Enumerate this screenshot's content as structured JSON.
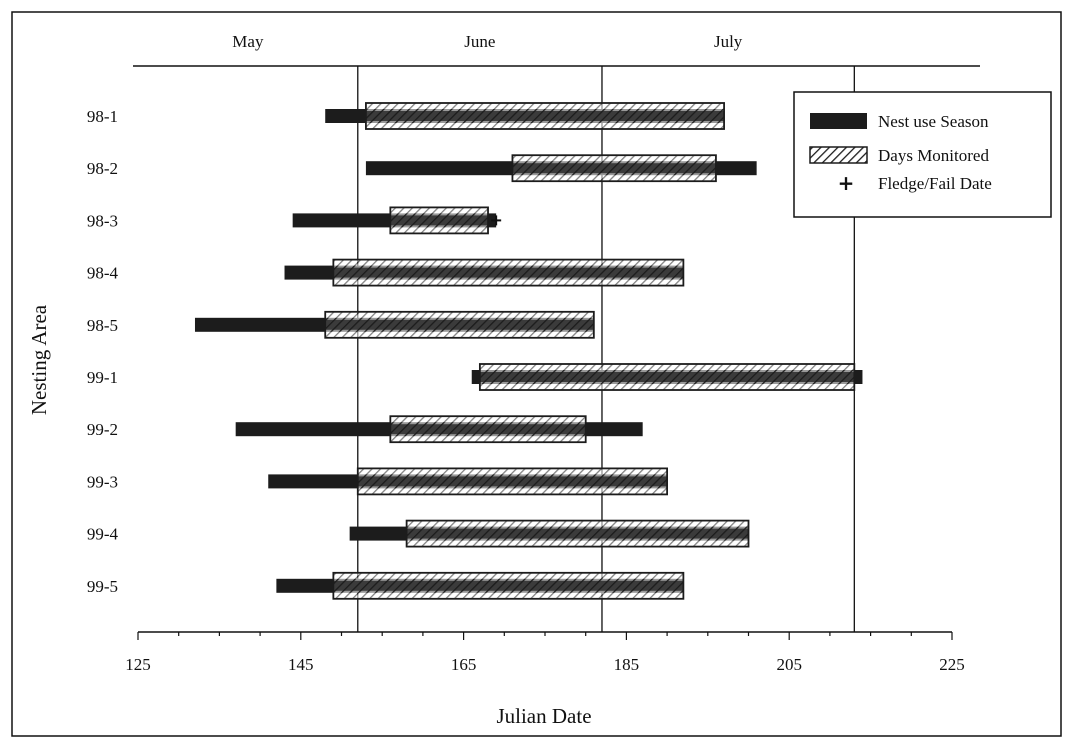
{
  "chart_data": {
    "type": "bar",
    "orientation": "horizontal",
    "xlabel": "Julian Date",
    "ylabel": "Nesting Area",
    "xlim": [
      125,
      225
    ],
    "xticks": [
      125,
      145,
      165,
      185,
      205,
      225
    ],
    "grid": false,
    "legend_position": "top-right",
    "categories": [
      "98-1",
      "98-2",
      "98-3",
      "98-4",
      "98-5",
      "99-1",
      "99-2",
      "99-3",
      "99-4",
      "99-5"
    ],
    "months": [
      {
        "label": "May",
        "start": 121,
        "end": 151
      },
      {
        "label": "June",
        "start": 152,
        "end": 181
      },
      {
        "label": "July",
        "start": 182,
        "end": 212
      }
    ],
    "series": [
      {
        "name": "Nest use Season",
        "style": "solid",
        "color": "#1c1c1c",
        "ranges": [
          [
            148,
            197
          ],
          [
            153,
            201
          ],
          [
            144,
            169
          ],
          [
            143,
            192
          ],
          [
            132,
            181
          ],
          [
            166,
            214
          ],
          [
            137,
            187
          ],
          [
            141,
            190
          ],
          [
            151,
            200
          ],
          [
            142,
            192
          ]
        ]
      },
      {
        "name": "Days Monitored",
        "style": "hatched",
        "color": "#1c1c1c",
        "ranges": [
          [
            153,
            197
          ],
          [
            171,
            196
          ],
          [
            156,
            168
          ],
          [
            149,
            192
          ],
          [
            148,
            181
          ],
          [
            167,
            213
          ],
          [
            156,
            180
          ],
          [
            152,
            190
          ],
          [
            158,
            200
          ],
          [
            149,
            192
          ]
        ]
      },
      {
        "name": "Fledge/Fail Date",
        "style": "marker",
        "color": "#1c1c1c",
        "values": [
          null,
          null,
          169,
          null,
          null,
          null,
          null,
          null,
          null,
          null
        ]
      }
    ]
  }
}
